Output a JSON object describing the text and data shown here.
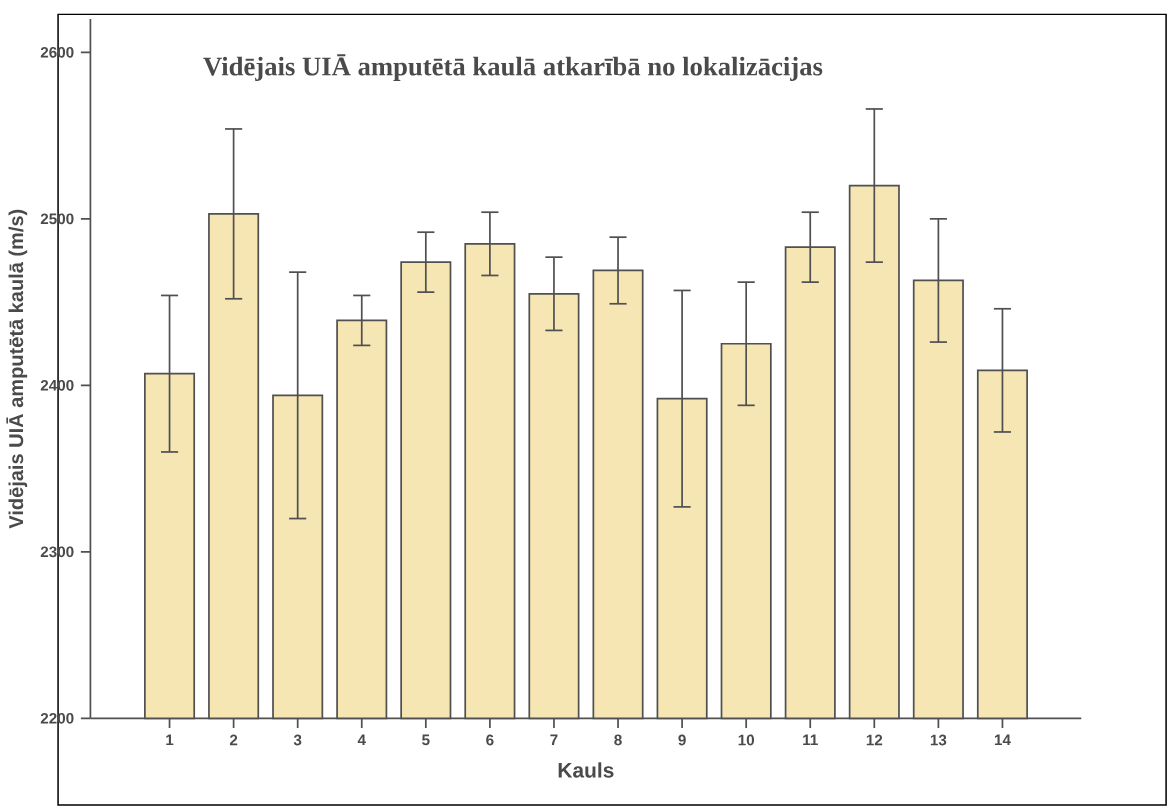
{
  "chart_data": {
    "type": "bar",
    "title": "Vidējais UIĀ amputētā kaulā atkarībā no lokalizācijas",
    "xlabel": "Kauls",
    "ylabel": "Vidējais UIĀ amputētā kaulā (m/s)",
    "categories": [
      "1",
      "2",
      "3",
      "4",
      "5",
      "6",
      "7",
      "8",
      "9",
      "10",
      "11",
      "12",
      "13",
      "14"
    ],
    "values": [
      2407,
      2503,
      2394,
      2439,
      2474,
      2485,
      2455,
      2469,
      2392,
      2425,
      2483,
      2520,
      2463,
      2409
    ],
    "errors": [
      47,
      51,
      74,
      15,
      18,
      19,
      22,
      20,
      65,
      37,
      21,
      46,
      37,
      37
    ],
    "color": "#f5e6b4",
    "ylim": [
      2200,
      2620
    ],
    "yticks": [
      2200,
      2300,
      2400,
      2500,
      2600
    ]
  }
}
